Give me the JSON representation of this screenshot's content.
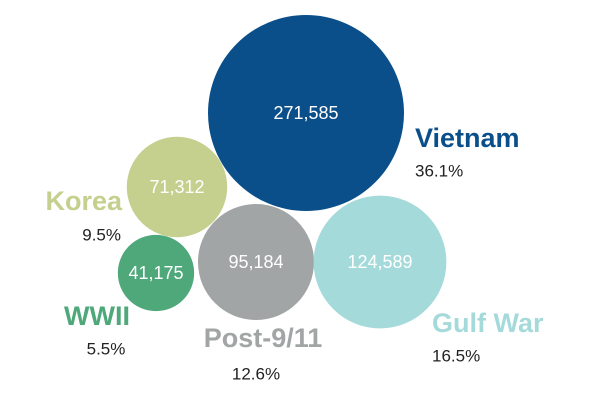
{
  "chart_data": {
    "type": "bubble",
    "categories": [
      "Vietnam",
      "Korea",
      "WWII",
      "Post-9/11",
      "Gulf War"
    ],
    "values": [
      271585,
      71312,
      41175,
      95184,
      124589
    ],
    "value_labels": [
      "271,585",
      "71,312",
      "41,175",
      "95,184",
      "124,589"
    ],
    "shares": [
      36.1,
      9.5,
      5.5,
      12.6,
      16.5
    ],
    "share_labels": [
      "36.1%",
      "9.5%",
      "5.5%",
      "12.6%",
      "16.5%"
    ],
    "colors": [
      "#0b4f8a",
      "#c5cf8e",
      "#4ea87a",
      "#a2a5a5",
      "#a5dadb"
    ]
  }
}
